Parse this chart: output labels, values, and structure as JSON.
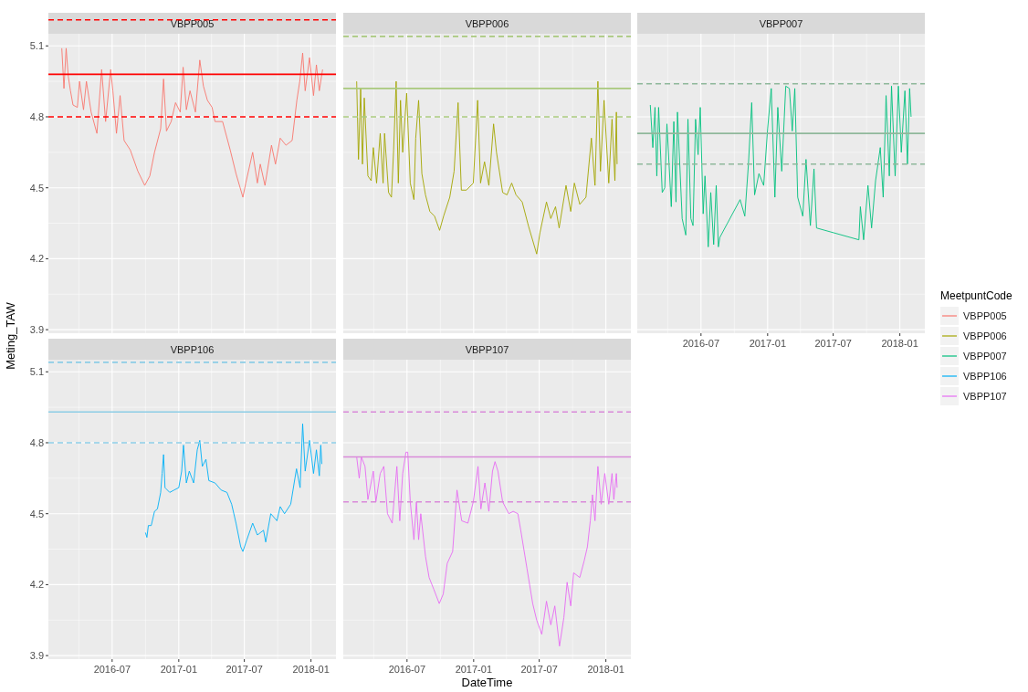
{
  "chart_data": [
    {
      "type": "line",
      "title": "VBPP005",
      "ylabel": "Meting_TAW",
      "legend_title": "MeetpuntCode",
      "legend": "right",
      "grid": true,
      "tick_labels": "y",
      "xlim": [
        "2016-01-07",
        "2018-03-11"
      ],
      "ylim": [
        3.885,
        5.24
      ],
      "xticks": [
        "2016-07",
        "2017-01",
        "2017-07",
        "2018-01"
      ],
      "yticks": [
        3.9,
        4.2,
        4.5,
        4.8,
        5.1
      ],
      "ref_lines": [
        {
          "axis": "y",
          "value": 5.21,
          "color": "#ff0000",
          "line_style": "dashed"
        },
        {
          "axis": "y",
          "value": 4.98,
          "color": "#ff0000",
          "line_style": "solid"
        },
        {
          "axis": "y",
          "value": 4.8,
          "color": "#ff0000",
          "line_style": "dashed"
        }
      ],
      "series": [
        {
          "name": "VBPP005",
          "color": "#f8766d",
          "x": [
            "2016-02-13",
            "2016-02-19",
            "2016-02-25",
            "2016-03-02",
            "2016-03-08",
            "2016-03-15",
            "2016-03-27",
            "2016-04-02",
            "2016-04-13",
            "2016-04-21",
            "2016-05-04",
            "2016-05-20",
            "2016-06-02",
            "2016-06-13",
            "2016-06-27",
            "2016-07-03",
            "2016-07-13",
            "2016-07-23",
            "2016-08-03",
            "2016-08-20",
            "2016-09-10",
            "2016-09-29",
            "2016-10-13",
            "2016-10-26",
            "2016-11-12",
            "2016-11-20",
            "2016-11-28",
            "2016-12-11",
            "2016-12-23",
            "2017-01-05",
            "2017-01-13",
            "2017-01-22",
            "2017-02-01",
            "2017-02-16",
            "2017-02-28",
            "2017-03-10",
            "2017-03-21",
            "2017-04-03",
            "2017-04-11",
            "2017-05-02",
            "2017-05-23",
            "2017-06-08",
            "2017-06-27",
            "2017-07-05",
            "2017-07-24",
            "2017-08-06",
            "2017-08-14",
            "2017-08-27",
            "2017-09-14",
            "2017-09-25",
            "2017-10-08",
            "2017-10-24",
            "2017-11-10",
            "2017-11-23",
            "2017-12-01",
            "2017-12-09",
            "2017-12-16",
            "2017-12-28",
            "2018-01-08",
            "2018-01-16",
            "2018-01-24",
            "2018-02-02"
          ],
          "values": [
            5.09,
            4.92,
            5.09,
            4.97,
            4.91,
            4.85,
            4.84,
            4.95,
            4.83,
            4.95,
            4.82,
            4.73,
            5.0,
            4.78,
            5.0,
            4.91,
            4.73,
            4.89,
            4.7,
            4.66,
            4.57,
            4.51,
            4.55,
            4.65,
            4.75,
            4.96,
            4.74,
            4.78,
            4.86,
            4.82,
            5.01,
            4.83,
            4.91,
            4.82,
            5.04,
            4.93,
            4.87,
            4.84,
            4.78,
            4.78,
            4.66,
            4.56,
            4.46,
            4.52,
            4.65,
            4.52,
            4.6,
            4.51,
            4.68,
            4.6,
            4.71,
            4.68,
            4.7,
            4.87,
            4.95,
            5.07,
            4.91,
            5.05,
            4.89,
            5.02,
            4.91,
            5.0
          ]
        }
      ]
    },
    {
      "type": "line",
      "title": "VBPP006",
      "legend": "right",
      "grid": true,
      "tick_labels": false,
      "xlim": [
        "2016-01-07",
        "2018-03-11"
      ],
      "ylim": [
        3.885,
        5.24
      ],
      "xticks": [
        "2016-07",
        "2017-01",
        "2017-07",
        "2018-01"
      ],
      "yticks": [
        3.9,
        4.2,
        4.5,
        4.8,
        5.1
      ],
      "ref_lines": [
        {
          "axis": "y",
          "value": 5.14,
          "color": "#a9c97d",
          "line_style": "dashed"
        },
        {
          "axis": "y",
          "value": 4.92,
          "color": "#a9c97d",
          "line_style": "solid"
        },
        {
          "axis": "y",
          "value": 4.8,
          "color": "#a9c97d",
          "line_style": "dashed"
        }
      ],
      "series": [
        {
          "name": "VBPP006",
          "color": "#a3a500",
          "x": [
            "2016-02-13",
            "2016-02-18",
            "2016-02-24",
            "2016-02-29",
            "2016-03-05",
            "2016-03-15",
            "2016-03-24",
            "2016-03-30",
            "2016-04-08",
            "2016-04-18",
            "2016-04-26",
            "2016-04-30",
            "2016-05-11",
            "2016-05-19",
            "2016-05-25",
            "2016-06-01",
            "2016-06-07",
            "2016-06-13",
            "2016-06-19",
            "2016-06-30",
            "2016-07-10",
            "2016-07-20",
            "2016-07-25",
            "2016-08-02",
            "2016-08-11",
            "2016-08-21",
            "2016-09-02",
            "2016-09-15",
            "2016-09-29",
            "2016-10-10",
            "2016-10-27",
            "2016-11-08",
            "2016-11-19",
            "2016-11-28",
            "2016-12-12",
            "2016-12-31",
            "2017-01-12",
            "2017-01-20",
            "2017-01-31",
            "2017-02-12",
            "2017-02-25",
            "2017-03-05",
            "2017-03-22",
            "2017-04-03",
            "2017-04-16",
            "2017-04-28",
            "2017-05-15",
            "2017-06-01",
            "2017-06-24",
            "2017-07-03",
            "2017-07-21",
            "2017-08-02",
            "2017-08-15",
            "2017-08-25",
            "2017-09-13",
            "2017-09-26",
            "2017-10-06",
            "2017-10-21",
            "2017-11-07",
            "2017-11-22",
            "2017-12-02",
            "2017-12-10",
            "2017-12-17",
            "2017-12-27",
            "2018-01-09",
            "2018-01-18",
            "2018-01-26",
            "2018-01-30",
            "2018-02-01"
          ],
          "values": [
            4.95,
            4.62,
            4.92,
            4.6,
            4.88,
            4.55,
            4.53,
            4.67,
            4.52,
            4.73,
            4.52,
            4.73,
            4.48,
            4.46,
            4.66,
            4.95,
            4.52,
            4.87,
            4.65,
            4.9,
            4.52,
            4.45,
            4.71,
            4.87,
            4.56,
            4.47,
            4.4,
            4.38,
            4.32,
            4.38,
            4.46,
            4.57,
            4.86,
            4.49,
            4.49,
            4.52,
            4.87,
            4.52,
            4.61,
            4.51,
            4.77,
            4.65,
            4.48,
            4.47,
            4.52,
            4.47,
            4.44,
            4.34,
            4.22,
            4.31,
            4.44,
            4.37,
            4.42,
            4.33,
            4.51,
            4.4,
            4.52,
            4.43,
            4.46,
            4.71,
            4.51,
            4.95,
            4.57,
            4.87,
            4.52,
            4.79,
            4.53,
            4.82,
            4.6
          ]
        }
      ]
    },
    {
      "type": "line",
      "title": "VBPP007",
      "legend": "right",
      "grid": true,
      "tick_labels": "x",
      "xlim": [
        "2016-01-07",
        "2018-03-11"
      ],
      "ylim": [
        3.885,
        5.24
      ],
      "xticks": [
        "2016-07",
        "2017-01",
        "2017-07",
        "2018-01"
      ],
      "yticks": [
        3.9,
        4.2,
        4.5,
        4.8,
        5.1
      ],
      "ref_lines": [
        {
          "axis": "y",
          "value": 4.94,
          "color": "#8fb89b",
          "line_style": "dashed"
        },
        {
          "axis": "y",
          "value": 4.73,
          "color": "#8fb89b",
          "line_style": "solid"
        },
        {
          "axis": "y",
          "value": 4.6,
          "color": "#8fb89b",
          "line_style": "dashed"
        }
      ],
      "series": [
        {
          "name": "VBPP007",
          "color": "#00bf7d",
          "x": [
            "2016-02-12",
            "2016-02-19",
            "2016-02-25",
            "2016-03-01",
            "2016-03-06",
            "2016-03-16",
            "2016-03-23",
            "2016-03-29",
            "2016-04-10",
            "2016-04-17",
            "2016-04-23",
            "2016-04-27",
            "2016-05-10",
            "2016-05-20",
            "2016-05-26",
            "2016-06-03",
            "2016-06-09",
            "2016-06-16",
            "2016-06-23",
            "2016-06-29",
            "2016-07-07",
            "2016-07-12",
            "2016-07-21",
            "2016-07-28",
            "2016-08-05",
            "2016-08-12",
            "2016-08-18",
            "2016-08-22",
            "2016-10-17",
            "2016-10-30",
            "2016-11-09",
            "2016-11-18",
            "2016-11-26",
            "2016-12-08",
            "2016-12-21",
            "2017-01-01",
            "2017-01-11",
            "2017-01-21",
            "2017-01-29",
            "2017-02-09",
            "2017-02-20",
            "2017-03-02",
            "2017-03-10",
            "2017-03-17",
            "2017-03-25",
            "2017-04-08",
            "2017-04-17",
            "2017-04-29",
            "2017-05-09",
            "2017-05-16",
            "2017-09-10",
            "2017-09-14",
            "2017-09-23",
            "2017-10-05",
            "2017-10-15",
            "2017-10-26",
            "2017-11-08",
            "2017-11-16",
            "2017-11-24",
            "2017-12-03",
            "2017-12-09",
            "2017-12-19",
            "2017-12-28",
            "2018-01-05",
            "2018-01-15",
            "2018-01-22",
            "2018-01-28",
            "2018-02-01"
          ],
          "values": [
            4.85,
            4.67,
            4.84,
            4.55,
            4.84,
            4.48,
            4.5,
            4.77,
            4.42,
            4.78,
            4.44,
            4.82,
            4.37,
            4.3,
            4.79,
            4.37,
            4.34,
            4.79,
            4.64,
            4.84,
            4.39,
            4.55,
            4.25,
            4.48,
            4.26,
            4.51,
            4.25,
            4.29,
            4.45,
            4.38,
            4.6,
            4.86,
            4.47,
            4.56,
            4.51,
            4.75,
            4.92,
            4.46,
            4.84,
            4.57,
            4.93,
            4.92,
            4.74,
            4.92,
            4.46,
            4.38,
            4.62,
            4.34,
            4.58,
            4.33,
            4.28,
            4.42,
            4.28,
            4.51,
            4.33,
            4.53,
            4.67,
            4.46,
            4.89,
            4.55,
            4.93,
            4.55,
            4.93,
            4.65,
            4.91,
            4.6,
            4.92,
            4.8
          ]
        }
      ]
    },
    {
      "type": "line",
      "title": "VBPP106",
      "legend": "right",
      "grid": true,
      "xlim": [
        "2016-01-07",
        "2018-03-11"
      ],
      "ylim": [
        3.885,
        5.24
      ],
      "xticks": [
        "2016-07",
        "2017-01",
        "2017-07",
        "2018-01"
      ],
      "yticks": [
        3.9,
        4.2,
        4.5,
        4.8,
        5.1
      ],
      "ref_lines": [
        {
          "axis": "y",
          "value": 5.14,
          "color": "#8ccde6",
          "line_style": "dashed"
        },
        {
          "axis": "y",
          "value": 4.93,
          "color": "#8ccde6",
          "line_style": "solid"
        },
        {
          "axis": "y",
          "value": 4.8,
          "color": "#8ccde6",
          "line_style": "dashed"
        }
      ],
      "series": [
        {
          "name": "VBPP106",
          "color": "#00b0f6",
          "x": [
            "2016-10-01",
            "2016-10-05",
            "2016-10-09",
            "2016-10-17",
            "2016-10-26",
            "2016-11-03",
            "2016-11-12",
            "2016-11-16",
            "2016-11-20",
            "2016-11-24",
            "2016-12-07",
            "2016-12-19",
            "2017-01-01",
            "2017-01-09",
            "2017-01-14",
            "2017-01-22",
            "2017-01-30",
            "2017-02-11",
            "2017-02-21",
            "2017-02-28",
            "2017-03-07",
            "2017-03-17",
            "2017-03-25",
            "2017-04-11",
            "2017-04-28",
            "2017-05-14",
            "2017-05-27",
            "2017-06-08",
            "2017-06-21",
            "2017-06-27",
            "2017-07-08",
            "2017-07-24",
            "2017-08-06",
            "2017-08-23",
            "2017-08-29",
            "2017-09-12",
            "2017-09-29",
            "2017-10-08",
            "2017-10-20",
            "2017-11-06",
            "2017-11-22",
            "2017-12-02",
            "2017-12-09",
            "2017-12-16",
            "2017-12-28",
            "2018-01-08",
            "2018-01-16",
            "2018-01-24",
            "2018-01-28",
            "2018-01-31"
          ],
          "values": [
            4.42,
            4.4,
            4.45,
            4.45,
            4.51,
            4.52,
            4.59,
            4.67,
            4.75,
            4.61,
            4.59,
            4.6,
            4.61,
            4.68,
            4.79,
            4.63,
            4.68,
            4.63,
            4.77,
            4.81,
            4.7,
            4.73,
            4.64,
            4.63,
            4.6,
            4.59,
            4.54,
            4.46,
            4.36,
            4.34,
            4.39,
            4.46,
            4.41,
            4.43,
            4.38,
            4.5,
            4.47,
            4.53,
            4.5,
            4.54,
            4.69,
            4.61,
            4.88,
            4.68,
            4.81,
            4.67,
            4.77,
            4.66,
            4.79,
            4.71
          ]
        }
      ]
    },
    {
      "type": "line",
      "title": "VBPP107",
      "xlabel": "DateTime",
      "legend": "right",
      "grid": true,
      "tick_labels": "x",
      "xlim": [
        "2016-01-07",
        "2018-03-11"
      ],
      "ylim": [
        3.885,
        5.24
      ],
      "xticks": [
        "2016-07",
        "2017-01",
        "2017-07",
        "2018-01"
      ],
      "yticks": [
        3.9,
        4.2,
        4.5,
        4.8,
        5.1
      ],
      "ref_lines": [
        {
          "axis": "y",
          "value": 4.93,
          "color": "#d98ad9",
          "line_style": "dashed"
        },
        {
          "axis": "y",
          "value": 4.74,
          "color": "#d98ad9",
          "line_style": "solid"
        },
        {
          "axis": "y",
          "value": 4.55,
          "color": "#d98ad9",
          "line_style": "dashed"
        }
      ],
      "series": [
        {
          "name": "VBPP107",
          "color": "#e76bf3",
          "x": [
            "2016-02-13",
            "2016-02-20",
            "2016-02-26",
            "2016-03-07",
            "2016-03-15",
            "2016-03-30",
            "2016-04-06",
            "2016-04-18",
            "2016-04-28",
            "2016-05-08",
            "2016-05-21",
            "2016-06-03",
            "2016-06-11",
            "2016-06-19",
            "2016-06-28",
            "2016-07-03",
            "2016-07-10",
            "2016-07-20",
            "2016-07-27",
            "2016-08-02",
            "2016-08-08",
            "2016-08-21",
            "2016-08-31",
            "2016-09-13",
            "2016-09-28",
            "2016-10-09",
            "2016-10-20",
            "2016-11-04",
            "2016-11-16",
            "2016-11-29",
            "2016-12-16",
            "2016-12-31",
            "2017-01-13",
            "2017-01-21",
            "2017-02-01",
            "2017-02-12",
            "2017-02-22",
            "2017-03-01",
            "2017-03-09",
            "2017-03-22",
            "2017-04-08",
            "2017-04-20",
            "2017-05-03",
            "2017-05-11",
            "2017-05-28",
            "2017-06-13",
            "2017-06-24",
            "2017-07-08",
            "2017-07-21",
            "2017-08-02",
            "2017-08-13",
            "2017-08-26",
            "2017-09-07",
            "2017-09-16",
            "2017-09-26",
            "2017-10-04",
            "2017-10-21",
            "2017-11-02",
            "2017-11-11",
            "2017-11-19",
            "2017-11-25",
            "2017-12-02",
            "2017-12-10",
            "2017-12-19",
            "2017-12-29",
            "2018-01-09",
            "2018-01-18",
            "2018-01-23",
            "2018-01-30",
            "2018-02-01"
          ],
          "values": [
            4.74,
            4.65,
            4.74,
            4.7,
            4.56,
            4.68,
            4.55,
            4.67,
            4.7,
            4.5,
            4.46,
            4.7,
            4.47,
            4.67,
            4.76,
            4.76,
            4.55,
            4.39,
            4.55,
            4.39,
            4.5,
            4.32,
            4.23,
            4.18,
            4.12,
            4.16,
            4.29,
            4.34,
            4.6,
            4.47,
            4.46,
            4.55,
            4.7,
            4.52,
            4.63,
            4.51,
            4.68,
            4.72,
            4.68,
            4.55,
            4.5,
            4.51,
            4.5,
            4.43,
            4.27,
            4.12,
            4.05,
            3.99,
            4.13,
            4.03,
            4.11,
            3.94,
            4.06,
            4.21,
            4.11,
            4.25,
            4.23,
            4.3,
            4.36,
            4.47,
            4.58,
            4.47,
            4.7,
            4.54,
            4.67,
            4.54,
            4.67,
            4.56,
            4.67,
            4.61
          ]
        }
      ]
    }
  ]
}
